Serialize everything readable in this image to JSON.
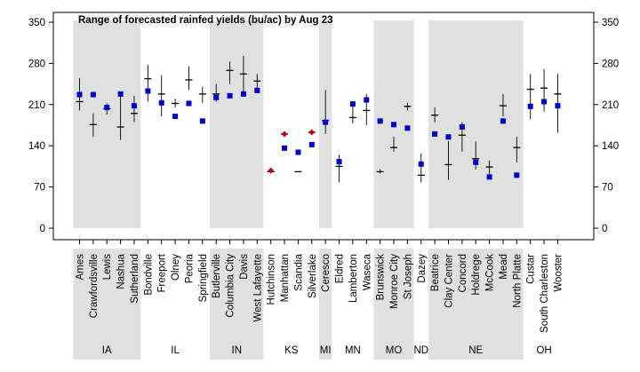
{
  "chart_data": {
    "type": "scatter",
    "title": "Range of forecasted rainfed yields (bu/ac) by Aug 23",
    "ylim": [
      0,
      350
    ],
    "yticks": [
      0,
      70,
      140,
      210,
      280,
      350
    ],
    "colors": {
      "shade": "#e0e0e0",
      "blue": "#0000cc",
      "red": "#cc0000",
      "range": "#000000"
    },
    "groups": [
      {
        "state": "IA",
        "sites": [
          {
            "name": "Ames",
            "min": 200,
            "max": 255,
            "median": 215,
            "mean": 227,
            "marker": "blue"
          },
          {
            "name": "Crawfordsville",
            "min": 155,
            "max": 195,
            "median": 176,
            "mean": 227,
            "marker": "blue"
          },
          {
            "name": "Lewis",
            "min": 193,
            "max": 212,
            "median": 203,
            "mean": 205,
            "marker": "blue"
          },
          {
            "name": "Nashua",
            "min": 150,
            "max": 230,
            "median": 172,
            "mean": 228,
            "marker": "blue"
          },
          {
            "name": "Sutherland",
            "min": 180,
            "max": 225,
            "median": 195,
            "mean": 208,
            "marker": "blue"
          }
        ]
      },
      {
        "state": "IL",
        "sites": [
          {
            "name": "Bondville",
            "min": 215,
            "max": 278,
            "median": 254,
            "mean": 233,
            "marker": "blue"
          },
          {
            "name": "Freeport",
            "min": 190,
            "max": 260,
            "median": 228,
            "mean": 213,
            "marker": "blue"
          },
          {
            "name": "Olney",
            "min": 205,
            "max": 220,
            "median": 212,
            "mean": 190,
            "marker": "blue"
          },
          {
            "name": "Peoria",
            "min": 235,
            "max": 275,
            "median": 252,
            "mean": 212,
            "marker": "blue"
          },
          {
            "name": "Springfield",
            "min": 213,
            "max": 240,
            "median": 228,
            "mean": 182,
            "marker": "blue"
          }
        ]
      },
      {
        "state": "IN",
        "sites": [
          {
            "name": "Butlerville",
            "min": 215,
            "max": 245,
            "median": 228,
            "mean": 222,
            "marker": "blue"
          },
          {
            "name": "Columbia City",
            "min": 245,
            "max": 283,
            "median": 268,
            "mean": 225,
            "marker": "blue"
          },
          {
            "name": "Davis",
            "min": 228,
            "max": 293,
            "median": 262,
            "mean": 228,
            "marker": "blue"
          },
          {
            "name": "West Lafayette",
            "min": 237,
            "max": 262,
            "median": 250,
            "mean": 234,
            "marker": "blue"
          }
        ]
      },
      {
        "state": "KS",
        "sites": [
          {
            "name": "Hutchinson",
            "min": 93,
            "max": 100,
            "median": 96,
            "mean": 98,
            "marker": "red"
          },
          {
            "name": "Manhattan",
            "min": 160,
            "max": 160,
            "median": 160,
            "mean": 160,
            "marker": "red",
            "blue_mean": 136
          },
          {
            "name": "Scandia",
            "min": 96,
            "max": 96,
            "median": 96,
            "mean": 129,
            "marker": "blue"
          },
          {
            "name": "Silverlake",
            "min": 163,
            "max": 163,
            "median": 163,
            "mean": 163,
            "marker": "red",
            "blue_mean": 142
          }
        ]
      },
      {
        "state": "MI",
        "sites": [
          {
            "name": "Ceresco",
            "min": 160,
            "max": 235,
            "median": 183,
            "mean": 180,
            "marker": "blue"
          }
        ]
      },
      {
        "state": "MN",
        "sites": [
          {
            "name": "Eldred",
            "min": 78,
            "max": 125,
            "median": 105,
            "mean": 113,
            "marker": "blue"
          },
          {
            "name": "Lamberton",
            "min": 178,
            "max": 208,
            "median": 188,
            "mean": 211,
            "marker": "blue"
          },
          {
            "name": "Waseca",
            "min": 175,
            "max": 228,
            "median": 200,
            "mean": 218,
            "marker": "blue"
          }
        ]
      },
      {
        "state": "MO",
        "sites": [
          {
            "name": "Brunswick",
            "min": 93,
            "max": 100,
            "median": 96,
            "mean": 182,
            "marker": "blue"
          },
          {
            "name": "Monroe City",
            "min": 130,
            "max": 155,
            "median": 137,
            "mean": 176,
            "marker": "blue"
          },
          {
            "name": "St Joseph",
            "min": 200,
            "max": 213,
            "median": 207,
            "mean": 170,
            "marker": "blue"
          }
        ]
      },
      {
        "state": "ND",
        "sites": [
          {
            "name": "Dazey",
            "min": 78,
            "max": 127,
            "median": 90,
            "mean": 109,
            "marker": "blue"
          }
        ]
      },
      {
        "state": "NE",
        "sites": [
          {
            "name": "Beatrice",
            "min": 180,
            "max": 205,
            "median": 192,
            "mean": 160,
            "marker": "blue"
          },
          {
            "name": "Clay Center",
            "min": 82,
            "max": 148,
            "median": 108,
            "mean": 155,
            "marker": "blue"
          },
          {
            "name": "Concord",
            "min": 130,
            "max": 180,
            "median": 158,
            "mean": 172,
            "marker": "blue"
          },
          {
            "name": "Holdrege",
            "min": 100,
            "max": 147,
            "median": 118,
            "mean": 112,
            "marker": "blue"
          },
          {
            "name": "McCook",
            "min": 92,
            "max": 115,
            "median": 104,
            "mean": 87,
            "marker": "blue"
          },
          {
            "name": "Mead",
            "min": 190,
            "max": 228,
            "median": 208,
            "mean": 182,
            "marker": "blue"
          },
          {
            "name": "North Platte",
            "min": 112,
            "max": 155,
            "median": 137,
            "mean": 90,
            "marker": "blue"
          }
        ]
      },
      {
        "state": "OH",
        "sites": [
          {
            "name": "Custar",
            "min": 185,
            "max": 262,
            "median": 236,
            "mean": 207,
            "marker": "blue"
          },
          {
            "name": "South Charleston",
            "min": 198,
            "max": 270,
            "median": 238,
            "mean": 215,
            "marker": "blue"
          },
          {
            "name": "Wooster",
            "min": 162,
            "max": 262,
            "median": 228,
            "mean": 208,
            "marker": "blue"
          }
        ]
      }
    ]
  }
}
